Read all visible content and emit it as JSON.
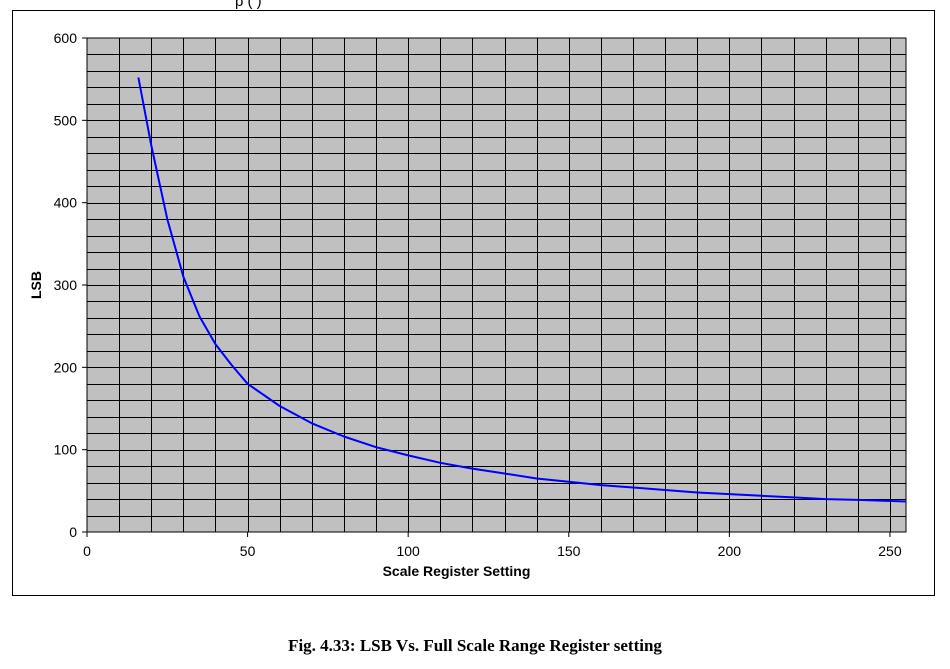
{
  "header": {
    "partial_title": "p     (        )"
  },
  "chart_data": {
    "type": "line",
    "title": "",
    "xlabel": "Scale Register Setting",
    "ylabel": "LSB",
    "xlim": [
      0,
      255
    ],
    "ylim": [
      0,
      600
    ],
    "x_major_ticks": [
      0,
      50,
      100,
      150,
      200,
      250
    ],
    "y_major_ticks": [
      0,
      100,
      200,
      300,
      400,
      500,
      600
    ],
    "x_minor_step": 10,
    "y_minor_step": 20,
    "grid": true,
    "legend": "none",
    "colors": {
      "plot_area": "#c0c0c0",
      "grid": "#000000",
      "line": "#0000ff"
    },
    "series": [
      {
        "x": [
          16,
          20,
          25,
          30,
          35,
          40,
          45,
          50,
          60,
          70,
          80,
          90,
          100,
          110,
          120,
          130,
          140,
          150,
          160,
          170,
          180,
          190,
          200,
          210,
          220,
          230,
          240,
          255
        ],
        "y": [
          552,
          470,
          380,
          310,
          262,
          228,
          203,
          180,
          153,
          132,
          116,
          103,
          93,
          84,
          77,
          71,
          65,
          61,
          57,
          54,
          51,
          48,
          46,
          44,
          42,
          40,
          39,
          37
        ]
      }
    ]
  },
  "caption": "Fig. 4.33: LSB Vs. Full Scale Range Register setting"
}
